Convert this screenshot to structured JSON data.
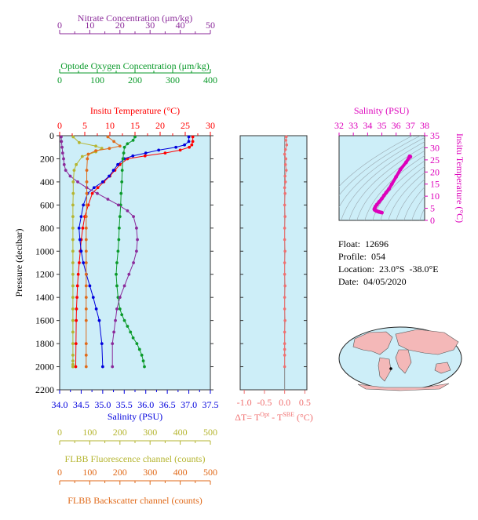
{
  "colors": {
    "panel_bg": "#cdeef8",
    "temperature": "#ff0000",
    "salinity": "#0000dd",
    "oxygen": "#0a9a2a",
    "nitrate": "#8b2a9a",
    "fluorescence": "#b5b530",
    "backscatter": "#e06a1a",
    "delta_t": "#f07070",
    "ts_panel": "#dd00bb",
    "axis": "#333333"
  },
  "chart_data": [
    {
      "type": "line",
      "panel": "profiles",
      "ylabel": "Pressure (decibar)",
      "ylim": [
        0,
        2200
      ],
      "y_ticks": [
        0,
        200,
        400,
        600,
        800,
        1000,
        1200,
        1400,
        1600,
        1800,
        2000,
        2200
      ],
      "grid": false,
      "axes": {
        "nitrate": {
          "label": "Nitrate Concentration (μm/kg)",
          "range": [
            0,
            50
          ],
          "ticks": [
            0,
            10,
            20,
            30,
            40,
            50
          ]
        },
        "oxygen": {
          "label": "Optode Oxygen Concentration (μm/kg)",
          "range": [
            0,
            400
          ],
          "ticks": [
            0,
            100,
            200,
            300,
            400
          ]
        },
        "temperature": {
          "label": "Insitu Temperature (°C)",
          "range": [
            0,
            30
          ],
          "ticks": [
            0,
            5,
            10,
            15,
            20,
            25,
            30
          ]
        },
        "salinity": {
          "label": "Salinity (PSU)",
          "range": [
            34.0,
            37.5
          ],
          "ticks": [
            "34.0",
            "34.5",
            "35.0",
            "35.5",
            "36.0",
            "36.5",
            "37.0",
            "37.5"
          ]
        },
        "fluorescence": {
          "label": "FLBB Fluorescence channel (counts)",
          "range": [
            0,
            500
          ],
          "ticks": [
            0,
            100,
            200,
            300,
            400,
            500
          ]
        },
        "backscatter": {
          "label": "FLBB Backscatter channel (counts)",
          "range": [
            0,
            500
          ],
          "ticks": [
            0,
            100,
            200,
            300,
            400,
            500
          ]
        }
      },
      "series": [
        {
          "name": "Insitu Temperature (°C)",
          "axis": "temperature",
          "x": [
            26.5,
            26.5,
            26.3,
            25.8,
            24.0,
            21.0,
            17.0,
            13.5,
            12.0,
            11.0,
            10.0,
            8.8,
            7.6,
            6.5,
            5.7,
            5.0,
            4.6,
            4.3,
            4.1,
            3.9,
            3.7,
            3.55,
            3.45,
            3.35,
            3.3,
            3.25,
            3.2
          ],
          "y": [
            10,
            50,
            80,
            100,
            125,
            150,
            175,
            200,
            250,
            300,
            350,
            400,
            450,
            500,
            600,
            700,
            800,
            900,
            1000,
            1100,
            1200,
            1300,
            1400,
            1500,
            1600,
            1800,
            2000
          ]
        },
        {
          "name": "Salinity (PSU)",
          "axis": "salinity",
          "x": [
            37.0,
            37.0,
            36.9,
            36.7,
            36.3,
            36.0,
            35.7,
            35.5,
            35.35,
            35.25,
            35.15,
            35.0,
            34.8,
            34.65,
            34.55,
            34.5,
            34.45,
            34.47,
            34.5,
            34.55,
            34.62,
            34.7,
            34.78,
            34.85,
            34.92,
            34.98,
            35.0
          ],
          "y": [
            10,
            50,
            80,
            100,
            125,
            150,
            175,
            200,
            250,
            300,
            350,
            400,
            450,
            500,
            600,
            700,
            800,
            900,
            1000,
            1100,
            1200,
            1300,
            1400,
            1500,
            1600,
            1800,
            2000
          ]
        },
        {
          "name": "Optode Oxygen Concentration (μm/kg)",
          "axis": "oxygen",
          "x": [
            200,
            195,
            180,
            172,
            170,
            168,
            166,
            165,
            163,
            162,
            160,
            158,
            157,
            155,
            152,
            150,
            152,
            155,
            160,
            165,
            172,
            180,
            188,
            195,
            205,
            212,
            218,
            222,
            225
          ],
          "y": [
            10,
            40,
            70,
            100,
            150,
            200,
            300,
            400,
            500,
            600,
            700,
            800,
            900,
            1000,
            1100,
            1200,
            1300,
            1400,
            1500,
            1550,
            1600,
            1650,
            1700,
            1750,
            1800,
            1850,
            1900,
            1950,
            2000
          ]
        },
        {
          "name": "Nitrate Concentration (μm/kg)",
          "axis": "nitrate",
          "x": [
            0.5,
            0.6,
            0.8,
            1.0,
            1.3,
            1.5,
            2.0,
            3.5,
            6.0,
            9.0,
            12.5,
            16.0,
            19.5,
            22.5,
            24.5,
            25.5,
            25.8,
            25.5,
            24.5,
            23.0,
            21.5,
            20.0,
            19.0,
            18.5,
            18.0,
            17.5,
            17.5
          ],
          "y": [
            10,
            50,
            100,
            150,
            200,
            250,
            300,
            350,
            400,
            450,
            500,
            550,
            600,
            650,
            700,
            800,
            900,
            1000,
            1100,
            1200,
            1300,
            1400,
            1500,
            1600,
            1700,
            1800,
            2000
          ]
        },
        {
          "name": "FLBB Fluorescence channel (counts)",
          "axis": "fluorescence",
          "x": [
            45,
            65,
            120,
            140,
            120,
            75,
            55,
            48,
            45,
            45,
            44,
            44,
            44,
            44,
            44,
            44,
            44,
            44,
            44,
            44,
            44,
            44,
            44,
            44,
            44,
            44,
            44,
            44
          ],
          "y": [
            10,
            60,
            90,
            110,
            140,
            180,
            250,
            300,
            400,
            500,
            600,
            700,
            800,
            900,
            1000,
            1100,
            1200,
            1300,
            1400,
            1500,
            1600,
            1700,
            1800,
            1900,
            1950,
            2000,
            1980,
            2000
          ]
        },
        {
          "name": "FLBB Backscatter channel (counts)",
          "axis": "backscatter",
          "x": [
            160,
            180,
            200,
            165,
            120,
            95,
            92,
            90,
            90,
            90,
            90,
            88,
            88,
            88,
            88,
            88,
            88,
            88,
            88,
            88,
            88,
            88,
            88,
            88
          ],
          "y": [
            10,
            50,
            90,
            110,
            130,
            160,
            200,
            300,
            400,
            500,
            600,
            700,
            800,
            900,
            1000,
            1100,
            1200,
            1300,
            1400,
            1500,
            1600,
            1800,
            1900,
            2000
          ]
        }
      ]
    },
    {
      "type": "line",
      "panel": "delta_t",
      "xlabel": "ΔT= T",
      "xlabel_sup1": "Opt",
      "xlabel_mid": " - T",
      "xlabel_sup2": "SBE",
      "xlabel_end": " (°C)",
      "xlim": [
        -1.1,
        0.55
      ],
      "x_ticks": [
        "-1.0",
        "-0.5",
        "0.0",
        "0.5"
      ],
      "ylim": [
        0,
        2200
      ],
      "series": [
        {
          "name": "",
          "x": [
            0.04,
            0.03,
            0.05,
            0.02,
            0.0,
            0.03,
            0.02,
            0.04,
            0.01,
            0.02,
            0.0,
            0.01,
            0.0,
            0.01,
            0.0,
            0.0,
            0.01,
            0.0,
            0.0,
            0.01,
            0.0,
            0.0,
            0.01,
            0.0,
            0.0,
            0.0,
            0.0,
            0.0
          ],
          "y": [
            10,
            40,
            80,
            120,
            160,
            200,
            250,
            300,
            350,
            400,
            450,
            500,
            600,
            700,
            800,
            900,
            1000,
            1100,
            1200,
            1300,
            1400,
            1500,
            1600,
            1700,
            1800,
            1850,
            1900,
            2000
          ]
        }
      ]
    },
    {
      "type": "line",
      "panel": "ts_diagram",
      "xlabel": "Salinity (PSU)",
      "ylabel": "Insitu Temperature (°C)",
      "xlim": [
        32,
        38
      ],
      "ylim": [
        0,
        35
      ],
      "x_ticks": [
        32,
        33,
        34,
        35,
        36,
        37,
        38
      ],
      "y_ticks": [
        0,
        5,
        10,
        15,
        20,
        25,
        30,
        35
      ],
      "series": [
        {
          "name": "",
          "x": [
            36.95,
            37.0,
            36.9,
            36.7,
            36.3,
            36.0,
            35.7,
            35.5,
            35.3,
            35.15,
            35.0,
            34.8,
            34.65,
            34.55,
            34.5,
            34.47,
            34.5,
            34.55,
            34.62,
            34.7,
            34.8,
            34.9,
            35.0
          ],
          "y": [
            26.5,
            26.3,
            25.8,
            24.0,
            21.0,
            18.0,
            15.0,
            13.0,
            11.5,
            10.3,
            9.0,
            7.6,
            6.5,
            5.7,
            5.0,
            4.6,
            4.3,
            4.1,
            3.9,
            3.7,
            3.5,
            3.35,
            3.2
          ]
        }
      ]
    }
  ],
  "info": {
    "float": "Float:  12696",
    "profile": "Profile:  054",
    "location": "Location:  23.0°S  -38.0°E",
    "date": "Date:  04/05/2020"
  }
}
